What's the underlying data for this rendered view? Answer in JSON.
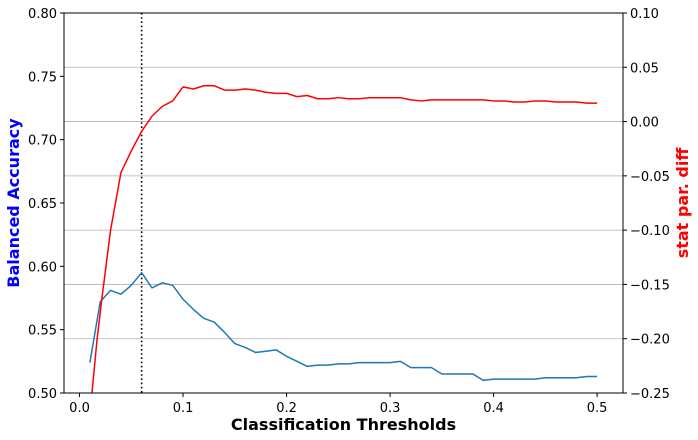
{
  "chart_data": {
    "type": "line",
    "xlabel": "Classification Thresholds",
    "ylabel_left": "Balanced Accuracy",
    "ylabel_right": "stat par. diff",
    "xlim": [
      -0.015,
      0.525
    ],
    "ylim_left": [
      0.5,
      0.8
    ],
    "ylim_right": [
      -0.25,
      0.1
    ],
    "x_ticks": [
      0.0,
      0.1,
      0.2,
      0.3,
      0.4,
      0.5
    ],
    "x_tick_labels": [
      "0.0",
      "0.1",
      "0.2",
      "0.3",
      "0.4",
      "0.5"
    ],
    "y_left_ticks": [
      0.5,
      0.55,
      0.6,
      0.65,
      0.7,
      0.75,
      0.8
    ],
    "y_left_tick_labels": [
      "0.50",
      "0.55",
      "0.60",
      "0.65",
      "0.70",
      "0.75",
      "0.80"
    ],
    "y_right_ticks": [
      -0.25,
      -0.2,
      -0.15,
      -0.1,
      -0.05,
      0.0,
      0.05,
      0.1
    ],
    "y_right_tick_labels": [
      "−0.25",
      "−0.20",
      "−0.15",
      "−0.10",
      "−0.05",
      "0.00",
      "0.05",
      "0.10"
    ],
    "grid": "horizontal (right axis)",
    "vline_x": 0.06,
    "colors": {
      "accuracy": "#1f77b4",
      "stat_par": "#ff0000",
      "ylabel_left": "#0000ff",
      "ylabel_right": "#ff0000",
      "grid": "#b0b0b0"
    },
    "series": [
      {
        "axis": "left",
        "x": [
          0.01,
          0.02,
          0.03,
          0.04,
          0.05,
          0.06,
          0.07,
          0.08,
          0.09,
          0.1,
          0.11,
          0.12,
          0.13,
          0.14,
          0.15,
          0.16,
          0.17,
          0.18,
          0.19,
          0.2,
          0.21,
          0.22,
          0.23,
          0.24,
          0.25,
          0.26,
          0.27,
          0.28,
          0.29,
          0.3,
          0.31,
          0.32,
          0.33,
          0.34,
          0.35,
          0.36,
          0.37,
          0.38,
          0.39,
          0.4,
          0.41,
          0.42,
          0.43,
          0.44,
          0.45,
          0.46,
          0.47,
          0.48,
          0.49,
          0.5
        ],
        "values": [
          0.524,
          0.572,
          0.581,
          0.578,
          0.585,
          0.595,
          0.583,
          0.587,
          0.585,
          0.574,
          0.566,
          0.559,
          0.556,
          0.548,
          0.539,
          0.536,
          0.532,
          0.533,
          0.534,
          0.529,
          0.525,
          0.521,
          0.522,
          0.522,
          0.523,
          0.523,
          0.524,
          0.524,
          0.524,
          0.524,
          0.525,
          0.52,
          0.52,
          0.52,
          0.515,
          0.515,
          0.515,
          0.515,
          0.51,
          0.511,
          0.511,
          0.511,
          0.511,
          0.511,
          0.512,
          0.512,
          0.512,
          0.512,
          0.513,
          0.513
        ]
      },
      {
        "axis": "right",
        "x": [
          0.012,
          0.017,
          0.022,
          0.03,
          0.04,
          0.05,
          0.06,
          0.07,
          0.08,
          0.09,
          0.1,
          0.11,
          0.12,
          0.13,
          0.14,
          0.15,
          0.16,
          0.17,
          0.18,
          0.19,
          0.2,
          0.21,
          0.22,
          0.23,
          0.24,
          0.25,
          0.26,
          0.27,
          0.28,
          0.29,
          0.3,
          0.31,
          0.32,
          0.33,
          0.34,
          0.35,
          0.36,
          0.37,
          0.38,
          0.39,
          0.4,
          0.41,
          0.42,
          0.43,
          0.44,
          0.45,
          0.46,
          0.47,
          0.48,
          0.49,
          0.5
        ],
        "values": [
          -0.25,
          -0.2,
          -0.16,
          -0.1,
          -0.047,
          -0.027,
          -0.009,
          0.005,
          0.014,
          0.019,
          0.032,
          0.03,
          0.033,
          0.033,
          0.029,
          0.029,
          0.03,
          0.029,
          0.027,
          0.026,
          0.026,
          0.023,
          0.024,
          0.021,
          0.021,
          0.022,
          0.021,
          0.021,
          0.022,
          0.022,
          0.022,
          0.022,
          0.02,
          0.019,
          0.02,
          0.02,
          0.02,
          0.02,
          0.02,
          0.02,
          0.019,
          0.019,
          0.018,
          0.018,
          0.019,
          0.019,
          0.018,
          0.018,
          0.018,
          0.017,
          0.017
        ]
      }
    ]
  }
}
